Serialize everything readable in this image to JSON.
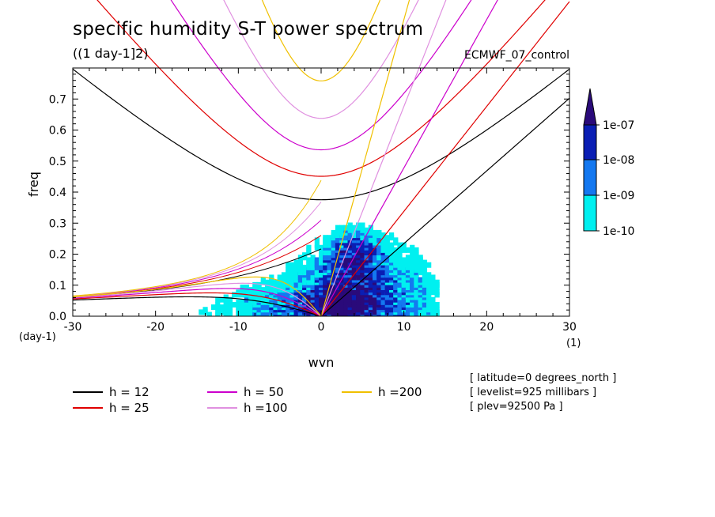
{
  "header": {
    "title": "specific humidity S-T power spectrum",
    "subtitle": "((1 day-1]2)",
    "dataset": "ECMWF_07_control"
  },
  "info_lines": [
    "[ latitude=0 degrees_north ]",
    "[ levelist=925 millibars ]",
    "[ plev=92500 Pa ]"
  ],
  "legend": [
    {
      "label": "h = 12",
      "color": "#000000"
    },
    {
      "label": "h = 25",
      "color": "#e00000"
    },
    {
      "label": "h = 50",
      "color": "#cc00cc"
    },
    {
      "label": "h =100",
      "color": "#e090e0"
    },
    {
      "label": "h =200",
      "color": "#f0c000"
    }
  ],
  "colorbar": {
    "labels": [
      "1e-07",
      "1e-08",
      "1e-09",
      "1e-10"
    ],
    "colors": [
      "#2a0a7a",
      "#0a1eb4",
      "#1478f0",
      "#00f0f0"
    ]
  },
  "chart_data": {
    "type": "heatmap",
    "xlabel": "wvn",
    "ylabel": "freq",
    "xlim": [
      -30,
      30
    ],
    "ylim": [
      0,
      0.8
    ],
    "x_ticks": [
      "-30",
      "-20",
      "-10",
      "0",
      "10",
      "20",
      "30"
    ],
    "y_ticks": [
      "0.0",
      "0.1",
      "0.2",
      "0.3",
      "0.4",
      "0.5",
      "0.6",
      "0.7"
    ],
    "x_unit_label": "(1)",
    "y_unit_label": "(day-1)",
    "dispersion_curves": [
      {
        "h": 12,
        "color": "#000000"
      },
      {
        "h": 25,
        "color": "#e00000"
      },
      {
        "h": 50,
        "color": "#cc00cc"
      },
      {
        "h": 100,
        "color": "#e090e0"
      },
      {
        "h": 200,
        "color": "#f0c000"
      }
    ]
  }
}
